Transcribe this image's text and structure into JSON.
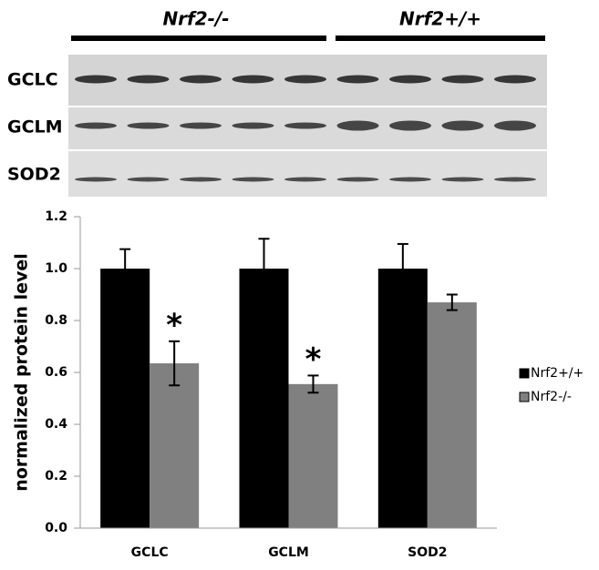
{
  "blot": {
    "groups": [
      "Nrf2-/-",
      "Nrf2+/+"
    ],
    "rows": [
      "GCLC",
      "GCLM",
      "SOD2"
    ]
  },
  "chart_data": {
    "type": "bar",
    "ylabel": "normalized protein level",
    "categories": [
      "GCLC",
      "GCLM",
      "SOD2"
    ],
    "series": [
      {
        "name": "Nrf2+/+",
        "color": "#000000",
        "values": [
          1,
          1,
          1
        ],
        "errors": [
          0.075,
          0.115,
          0.095
        ]
      },
      {
        "name": "Nrf2-/-",
        "color": "#808080",
        "values": [
          0.635,
          0.555,
          0.87
        ],
        "errors": [
          0.085,
          0.033,
          0.03
        ]
      }
    ],
    "annotations": [
      {
        "text": "*",
        "x": "GCLC"
      },
      {
        "text": "*",
        "x": "GCLM"
      }
    ],
    "ylim": [
      0,
      1.2
    ],
    "yticks": [
      {
        "value": 0,
        "label": "0.0"
      },
      0.2,
      0.4,
      0.6,
      0.8,
      {
        "value": 1,
        "label": "1.0"
      },
      1.2
    ],
    "legend": "right"
  }
}
